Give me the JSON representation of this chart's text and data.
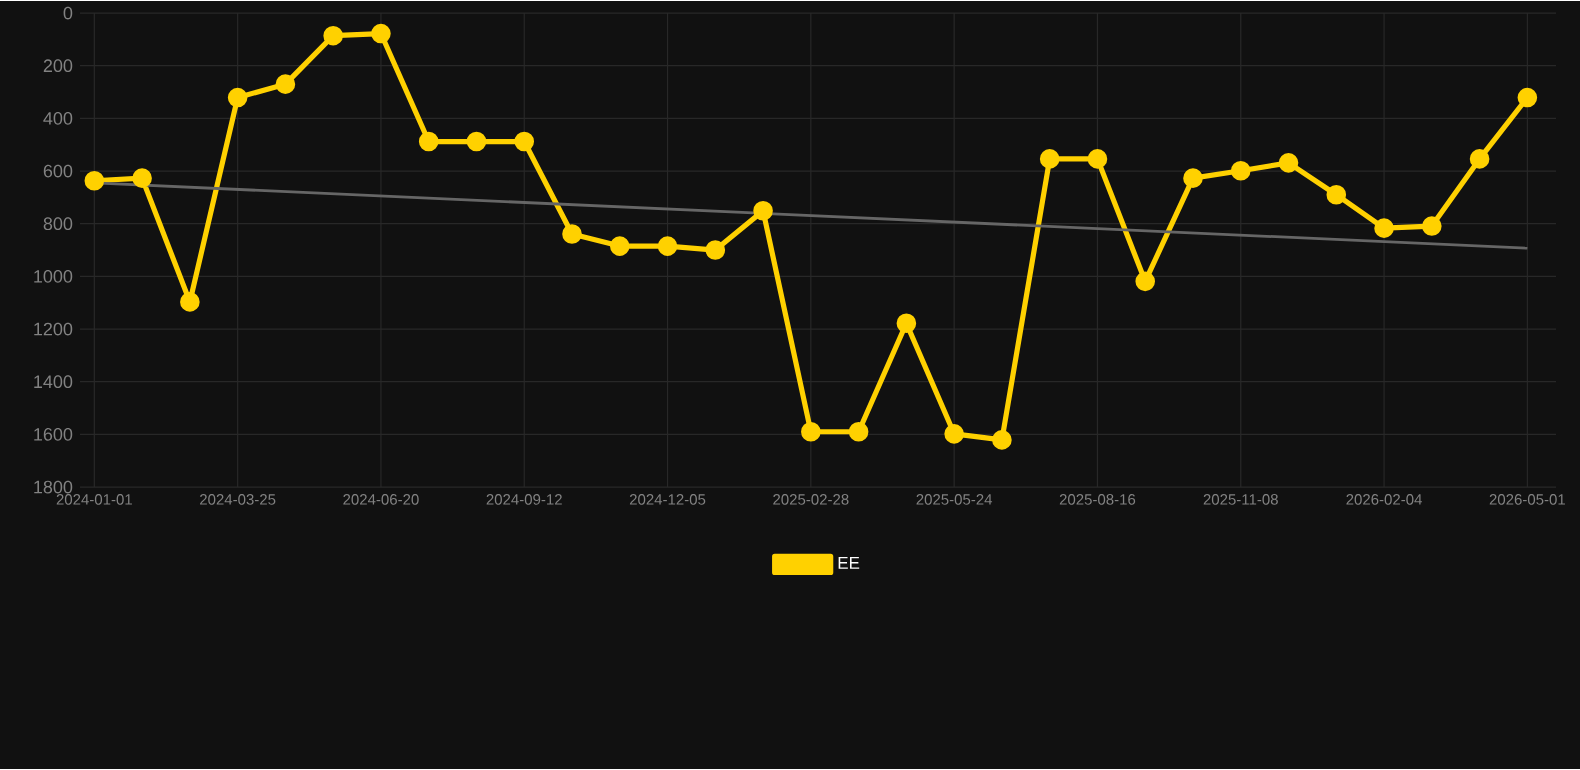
{
  "chart_data": {
    "type": "line",
    "categories": [
      "2024-01-01",
      null,
      null,
      "2024-03-25",
      null,
      null,
      "2024-06-20",
      null,
      null,
      "2024-09-12",
      null,
      null,
      "2024-12-05",
      null,
      null,
      "2025-02-28",
      null,
      null,
      "2025-05-24",
      null,
      null,
      "2025-08-16",
      null,
      null,
      "2025-11-08",
      null,
      null,
      "2026-02-04",
      null,
      null,
      "2026-05-01"
    ],
    "series": [
      {
        "name": "EE",
        "color": "#ffd100",
        "values": [
          637,
          627,
          1097,
          321,
          270,
          86,
          78,
          488,
          488,
          488,
          839,
          885,
          885,
          900,
          751,
          1590,
          1590,
          1178,
          1598,
          1621,
          554,
          554,
          1019,
          627,
          599,
          569,
          690,
          817,
          809,
          554,
          321
        ]
      },
      {
        "type": "line",
        "color": "#666666",
        "marker": "none",
        "values": [
          645,
          null,
          null,
          null,
          null,
          null,
          null,
          null,
          null,
          null,
          null,
          null,
          null,
          null,
          null,
          null,
          null,
          null,
          null,
          null,
          null,
          null,
          null,
          null,
          null,
          null,
          null,
          null,
          null,
          null,
          893
        ]
      }
    ],
    "ylim": [
      1800,
      0
    ],
    "yticks": [
      0,
      200,
      400,
      600,
      800,
      1000,
      1200,
      1400,
      1600,
      1800
    ],
    "grid": true,
    "legend": "bottom",
    "marker": "circle",
    "line_style": "solid"
  }
}
